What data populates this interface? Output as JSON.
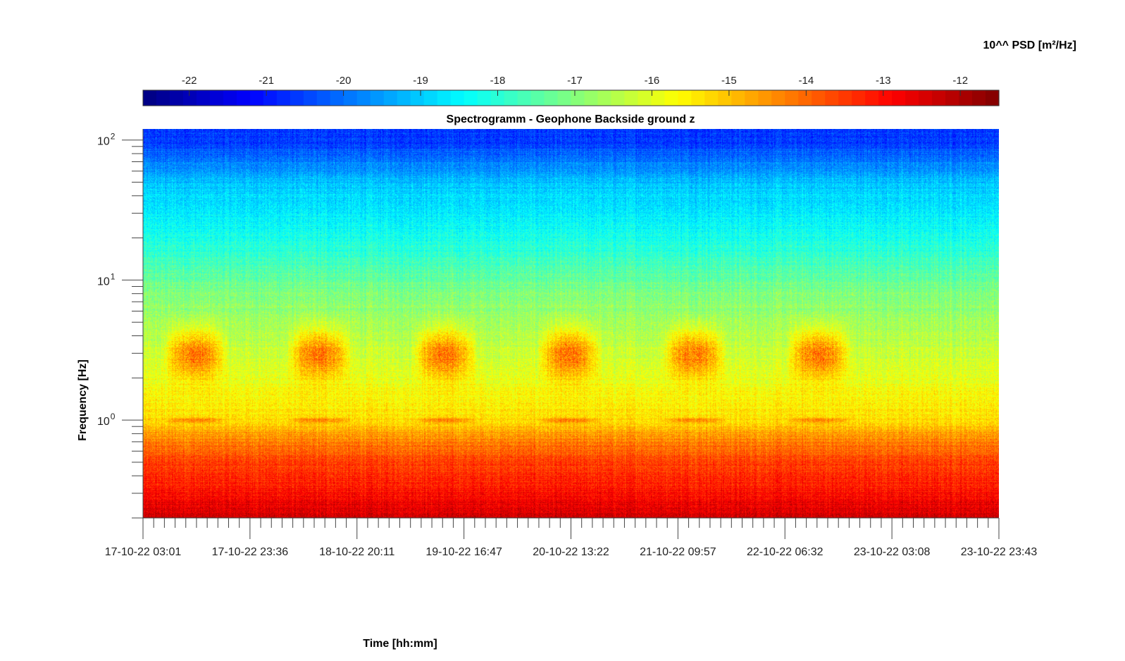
{
  "chart_data": {
    "type": "heatmap",
    "title": "Spectrogramm - Geophone Backside ground z",
    "xlabel": "Time [hh:mm]",
    "ylabel": "Frequency [Hz]",
    "colorbar": {
      "label": "10^^ PSD [m²/Hz]",
      "ticks": [
        "-22",
        "-21",
        "-20",
        "-19",
        "-18",
        "-17",
        "-16",
        "-15",
        "-14",
        "-13",
        "-12"
      ],
      "tick_values": [
        -22,
        -21,
        -20,
        -19,
        -18,
        -17,
        -16,
        -15,
        -14,
        -13,
        -12
      ],
      "range": [
        -22.6,
        -11.5
      ],
      "colormap": "jet"
    },
    "x_ticks": [
      "17-10-22 03:01",
      "17-10-22 23:36",
      "18-10-22 20:11",
      "19-10-22 16:47",
      "20-10-22 13:22",
      "21-10-22 09:57",
      "22-10-22 06:32",
      "23-10-22 03:08",
      "23-10-22 23:43"
    ],
    "y_ticks": [
      {
        "base": "10",
        "exp": "0",
        "value": 1
      },
      {
        "base": "10",
        "exp": "1",
        "value": 10
      },
      {
        "base": "10",
        "exp": "2",
        "value": 100
      }
    ],
    "y_scale": "log",
    "y_range_hz": [
      0.2,
      120
    ],
    "x_range": [
      "17-10-22 03:01",
      "23-10-22 23:43"
    ],
    "psd_profile_log10": [
      {
        "freq_hz": 0.2,
        "psd": -12.3
      },
      {
        "freq_hz": 0.3,
        "psd": -13.0
      },
      {
        "freq_hz": 0.5,
        "psd": -13.6
      },
      {
        "freq_hz": 0.7,
        "psd": -14.2
      },
      {
        "freq_hz": 1.0,
        "psd": -15.3
      },
      {
        "freq_hz": 2.0,
        "psd": -15.9
      },
      {
        "freq_hz": 3.0,
        "psd": -16.2
      },
      {
        "freq_hz": 6.0,
        "psd": -16.8
      },
      {
        "freq_hz": 10,
        "psd": -17.3
      },
      {
        "freq_hz": 15,
        "psd": -17.9
      },
      {
        "freq_hz": 30,
        "psd": -18.6
      },
      {
        "freq_hz": 50,
        "psd": -19.1
      },
      {
        "freq_hz": 100,
        "psd": -20.6
      }
    ],
    "activity_bursts_3hz": [
      {
        "start": "17-10-22 08:00",
        "end": "17-10-22 18:00",
        "psd_peak": -13.8
      },
      {
        "start": "18-10-22 08:00",
        "end": "18-10-22 18:00",
        "psd_peak": -13.8
      },
      {
        "start": "19-10-22 08:00",
        "end": "19-10-22 18:00",
        "psd_peak": -13.8
      },
      {
        "start": "20-10-22 08:00",
        "end": "20-10-22 18:00",
        "psd_peak": -13.8
      },
      {
        "start": "21-10-22 08:00",
        "end": "21-10-22 18:00",
        "psd_peak": -13.8
      },
      {
        "start": "22-10-22 08:00",
        "end": "22-10-22 18:00",
        "psd_peak": -13.8
      }
    ],
    "grid": false
  }
}
